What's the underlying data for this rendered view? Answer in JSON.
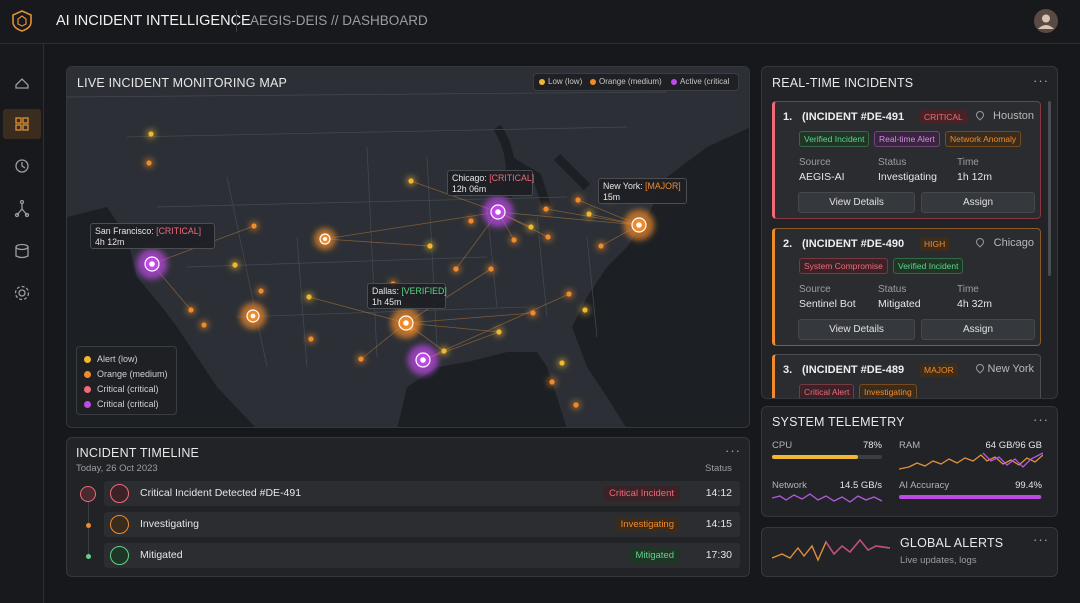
{
  "header": {
    "title": "AI INCIDENT INTELLIGENCE",
    "breadcrumb": "AEGIS-DEIS // DASHBOARD"
  },
  "map": {
    "title": "LIVE INCIDENT MONITORING MAP",
    "legend_top": [
      "Low (low)",
      "Orange (medium)",
      "Active (critical"
    ],
    "callouts": [
      {
        "city": "San Francisco:",
        "status": "[CRITICAL]",
        "time": "4h 12m"
      },
      {
        "city": "Chicago:",
        "status": "[CRITICAL]",
        "time": "12h 06m"
      },
      {
        "city": "New York:",
        "status": "[MAJOR]",
        "time": "15m"
      },
      {
        "city": "Dallas:",
        "status": "[VERIFIED]",
        "time": "1h 45m"
      }
    ],
    "legend": [
      "Alert (low)",
      "Orange (medium)",
      "Critical (critical)",
      "Critical (critical)"
    ]
  },
  "incidents": {
    "title": "REAL-TIME INCIDENTS",
    "items": [
      {
        "number": "1.",
        "id": "(INCIDENT #DE-491",
        "severity": "CRITICAL",
        "location": "Houston",
        "tags": [
          "Verified Incident",
          "Real-time Alert",
          "Network Anomaly"
        ],
        "fields": [
          {
            "label": "Source",
            "value": "AEGIS-AI"
          },
          {
            "label": "Status",
            "value": "Investigating"
          },
          {
            "label": "Time",
            "value": "1h 12m"
          }
        ],
        "actions": [
          "View Details",
          "Assign"
        ]
      },
      {
        "number": "2.",
        "id": "(INCIDENT #DE-490",
        "severity": "HIGH",
        "location": "Chicago",
        "tags": [
          "System Compromise",
          "Verified Incident"
        ],
        "fields": [
          {
            "label": "Source",
            "value": "Sentinel Bot"
          },
          {
            "label": "Status",
            "value": "Mitigated"
          },
          {
            "label": "Time",
            "value": "4h 32m"
          }
        ],
        "actions": [
          "View Details",
          "Assign"
        ]
      },
      {
        "number": "3.",
        "id": "(INCIDENT #DE-489",
        "severity": "MAJOR",
        "location": "New York",
        "tags": [
          "Critical Alert",
          "Investigating"
        ],
        "fields": [],
        "actions": []
      }
    ]
  },
  "timeline": {
    "title": "INCIDENT TIMELINE",
    "date": "Today, 26 Oct 2023",
    "status_header": "Status",
    "rows": [
      {
        "event": "Critical Incident Detected #DE-491",
        "status": "Critical Incident",
        "time": "14:12"
      },
      {
        "event": "Investigating",
        "status": "Investigating",
        "time": "14:15"
      },
      {
        "event": "Mitigated",
        "status": "Mitigated",
        "time": "17:30"
      }
    ]
  },
  "telemetry": {
    "title": "SYSTEM TELEMETRY",
    "metrics": [
      {
        "label": "CPU",
        "value": {
          "value": 78,
          "label": "78%"
        }
      },
      {
        "label": "RAM",
        "value": "64 GB/96 GB"
      },
      {
        "label": "Network",
        "value": "14.5 GB/s"
      },
      {
        "label": "AI Accuracy",
        "value": {
          "value": 99.4,
          "label": "99.4%"
        }
      }
    ]
  },
  "alerts": {
    "title": "GLOBAL ALERTS",
    "subtitle": "Live updates, logs"
  }
}
